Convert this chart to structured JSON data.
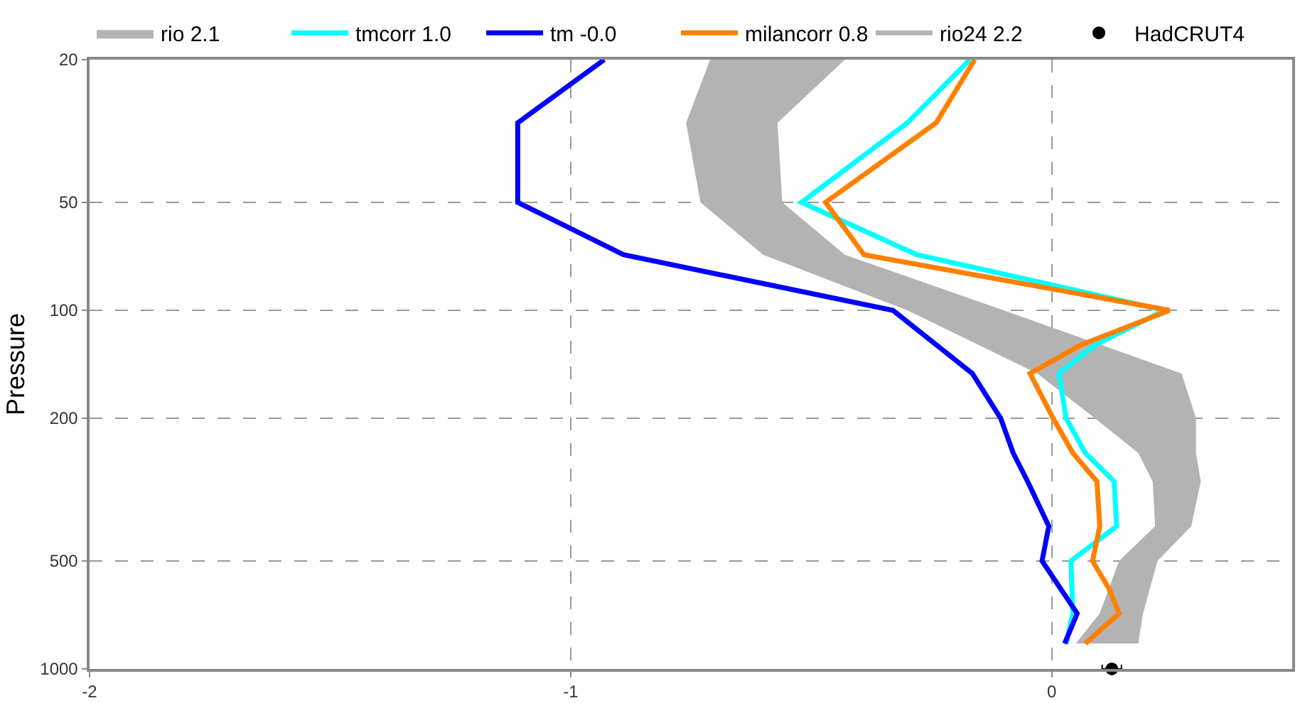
{
  "chart_data": {
    "type": "line",
    "ylabel": "Pressure",
    "xlim": [
      -2,
      0.5
    ],
    "xticks": [
      -2,
      -1,
      0
    ],
    "ylim": [
      1000,
      20
    ],
    "yticks": [
      20,
      50,
      100,
      200,
      500,
      1000
    ],
    "log": "y",
    "grid": true,
    "legend": "top",
    "series": [
      {
        "name": "rio 2.1",
        "type": "area",
        "color": "#b3b3b3",
        "x": [
          -0.71,
          -0.76,
          -0.73,
          -0.6,
          -0.3,
          -0.03,
          0.09,
          0.18,
          0.21,
          0.215,
          0.14,
          0.1,
          0.05,
          0.18,
          0.19,
          0.22,
          0.29,
          0.31,
          0.3,
          0.3,
          0.27,
          -0.1,
          -0.43,
          -0.56,
          -0.57,
          -0.43
        ],
        "values": [
          20,
          30,
          50,
          70,
          100,
          150,
          200,
          250,
          300,
          400,
          500,
          700,
          850,
          850,
          700,
          500,
          400,
          300,
          250,
          200,
          150,
          100,
          70,
          50,
          30,
          20
        ]
      },
      {
        "name": "tmcorr 1.0",
        "type": "line",
        "color": "#00ffff",
        "x": [
          -0.17,
          -0.3,
          -0.52,
          -0.28,
          0.235,
          0.09,
          0.015,
          0.03,
          0.07,
          0.13,
          0.135,
          0.04,
          0.044,
          0.03
        ],
        "values": [
          20,
          30,
          50,
          70,
          100,
          125,
          150,
          200,
          250,
          300,
          400,
          500,
          700,
          850
        ]
      },
      {
        "name": "tm -0.0",
        "type": "line",
        "color": "#0000ff",
        "x": [
          -0.93,
          -1.11,
          -1.11,
          -0.89,
          -0.33,
          -0.165,
          -0.106,
          -0.08,
          -0.05,
          -0.006,
          -0.02,
          0.053,
          0.027
        ],
        "values": [
          20,
          30,
          50,
          70,
          100,
          150,
          200,
          250,
          300,
          400,
          500,
          700,
          850
        ]
      },
      {
        "name": "milancorr 0.8",
        "type": "line",
        "color": "#ff8000",
        "x": [
          -0.16,
          -0.24,
          -0.47,
          -0.39,
          0.245,
          0.06,
          -0.045,
          0.003,
          0.044,
          0.094,
          0.1,
          0.085,
          0.12,
          0.14,
          0.07
        ],
        "values": [
          20,
          30,
          50,
          70,
          100,
          125,
          150,
          200,
          250,
          300,
          400,
          500,
          600,
          700,
          850
        ]
      },
      {
        "name": "rio24 2.2",
        "type": "line",
        "color": "#b3b3b3",
        "x": [
          null
        ],
        "values": [
          null
        ]
      },
      {
        "name": "HadCRUT4",
        "type": "scatter",
        "color": "#000000",
        "x": [
          0.125
        ],
        "values": [
          1000
        ],
        "xerrors": [
          0.02
        ]
      }
    ]
  }
}
